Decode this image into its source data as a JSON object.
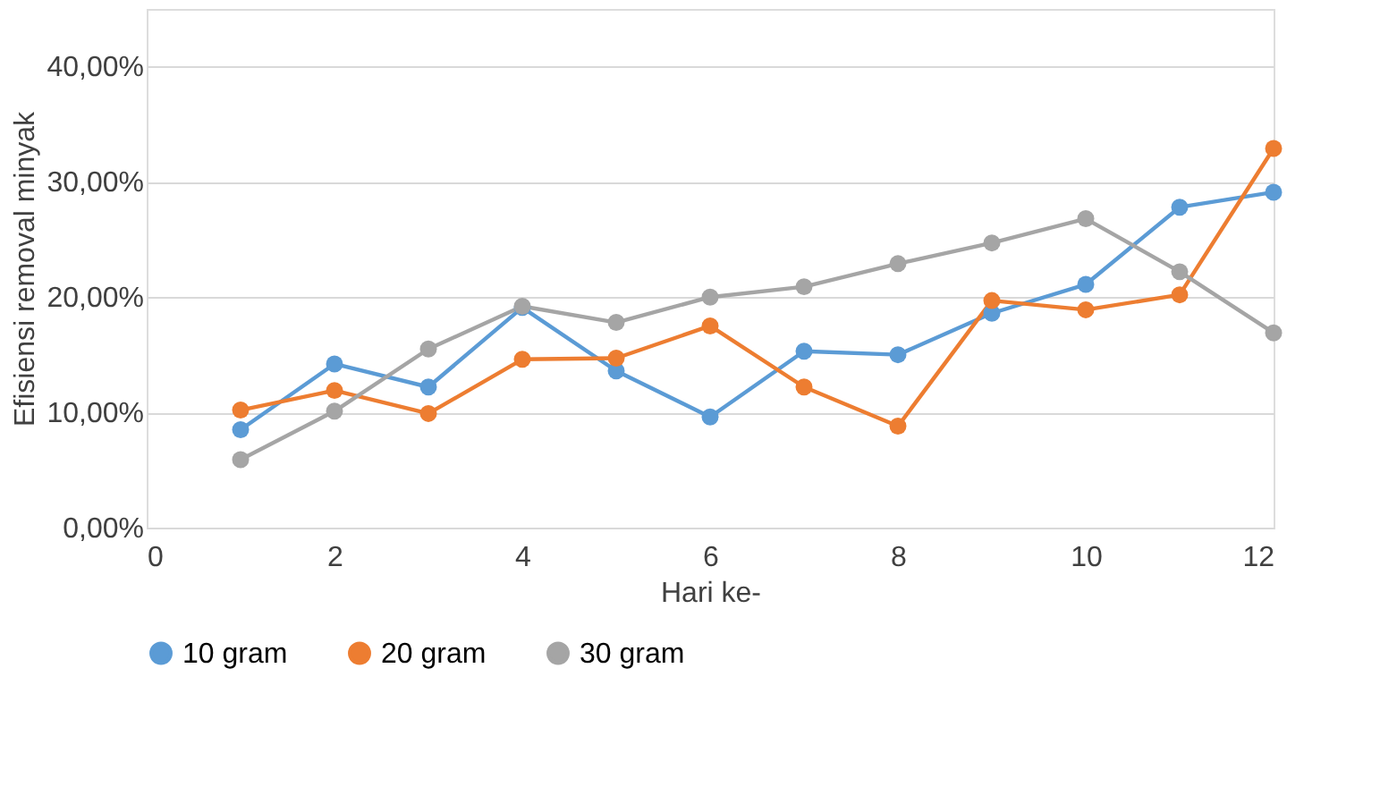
{
  "chart_data": {
    "type": "line",
    "xlabel": "Hari ke-",
    "ylabel": "Efisiensi removal minyak",
    "x": [
      1,
      2,
      3,
      4,
      5,
      6,
      7,
      8,
      9,
      10,
      11,
      12
    ],
    "series": [
      {
        "name": "10 gram",
        "color": "#5b9bd5",
        "values": [
          8.5,
          14.2,
          12.2,
          19.1,
          13.6,
          9.6,
          15.3,
          15.0,
          18.6,
          21.1,
          27.8,
          29.1
        ]
      },
      {
        "name": "20 gram",
        "color": "#ed7d31",
        "values": [
          10.2,
          11.9,
          9.9,
          14.6,
          14.7,
          17.5,
          12.2,
          8.8,
          19.7,
          18.9,
          20.2,
          32.9
        ]
      },
      {
        "name": "30 gram",
        "color": "#a5a5a5",
        "values": [
          5.9,
          10.1,
          15.5,
          19.2,
          17.8,
          20.0,
          20.9,
          22.9,
          24.7,
          26.8,
          22.2,
          16.9
        ]
      }
    ],
    "xlim": [
      0,
      12
    ],
    "xticks": [
      0,
      2,
      4,
      6,
      8,
      10,
      12
    ],
    "ylim": [
      0,
      45
    ],
    "yticks": [
      {
        "value": 0,
        "label": "0,00%"
      },
      {
        "value": 10,
        "label": "10,00%"
      },
      {
        "value": 20,
        "label": "20,00%"
      },
      {
        "value": 30,
        "label": "30,00%"
      },
      {
        "value": 40,
        "label": "40,00%"
      }
    ],
    "grid": "y",
    "legend": "bottom",
    "marker": "circle",
    "line_style": "solid"
  }
}
